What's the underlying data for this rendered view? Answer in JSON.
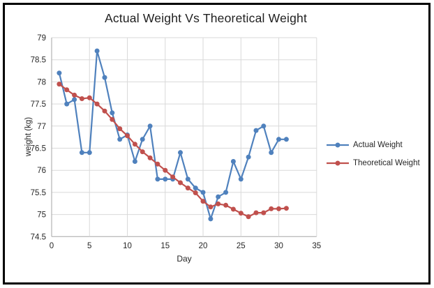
{
  "window": {
    "background": "#ffffff",
    "border_color": "#000000"
  },
  "colors": {
    "gridline": "#d9d9d9",
    "axis_line": "#a6a6a6",
    "tick_text": "#262626",
    "title_text": "#1f1f1f",
    "actual_series": "#4f81bd",
    "theoretical_series": "#c0504d"
  },
  "chart_data": {
    "type": "line",
    "title": "Actual Weight Vs Theoretical Weight",
    "xlabel": "Day",
    "ylabel": "weight (kg)",
    "xlim": [
      0,
      35
    ],
    "ylim": [
      74.5,
      79
    ],
    "x_ticks": [
      0,
      5,
      10,
      15,
      20,
      25,
      30,
      35
    ],
    "y_ticks": [
      74.5,
      75,
      75.5,
      76,
      76.5,
      77,
      77.5,
      78,
      78.5,
      79
    ],
    "grid": true,
    "legend_position": "right",
    "x": [
      1,
      2,
      3,
      4,
      5,
      6,
      7,
      8,
      9,
      10,
      11,
      12,
      13,
      14,
      15,
      16,
      17,
      18,
      19,
      20,
      21,
      22,
      23,
      24,
      25,
      26,
      27,
      28,
      29,
      30,
      31
    ],
    "series": [
      {
        "name": "Actual Weight",
        "color": "#4f81bd",
        "values": [
          78.2,
          77.5,
          77.6,
          76.4,
          76.4,
          78.7,
          78.1,
          77.3,
          76.7,
          76.8,
          76.2,
          76.7,
          77.0,
          75.8,
          75.8,
          75.8,
          76.4,
          75.8,
          75.6,
          75.5,
          74.9,
          75.4,
          75.5,
          76.2,
          75.8,
          76.3,
          76.9,
          77.0,
          76.4,
          76.7,
          76.7
        ]
      },
      {
        "name": "Theoretical Weight",
        "color": "#c0504d",
        "values": [
          77.95,
          77.82,
          77.7,
          77.62,
          77.64,
          77.5,
          77.34,
          77.15,
          76.94,
          76.78,
          76.59,
          76.42,
          76.28,
          76.14,
          76.0,
          75.85,
          75.72,
          75.6,
          75.49,
          75.3,
          75.17,
          75.24,
          75.21,
          75.12,
          75.03,
          74.95,
          75.04,
          75.04,
          75.13,
          75.13,
          75.14
        ]
      }
    ]
  }
}
